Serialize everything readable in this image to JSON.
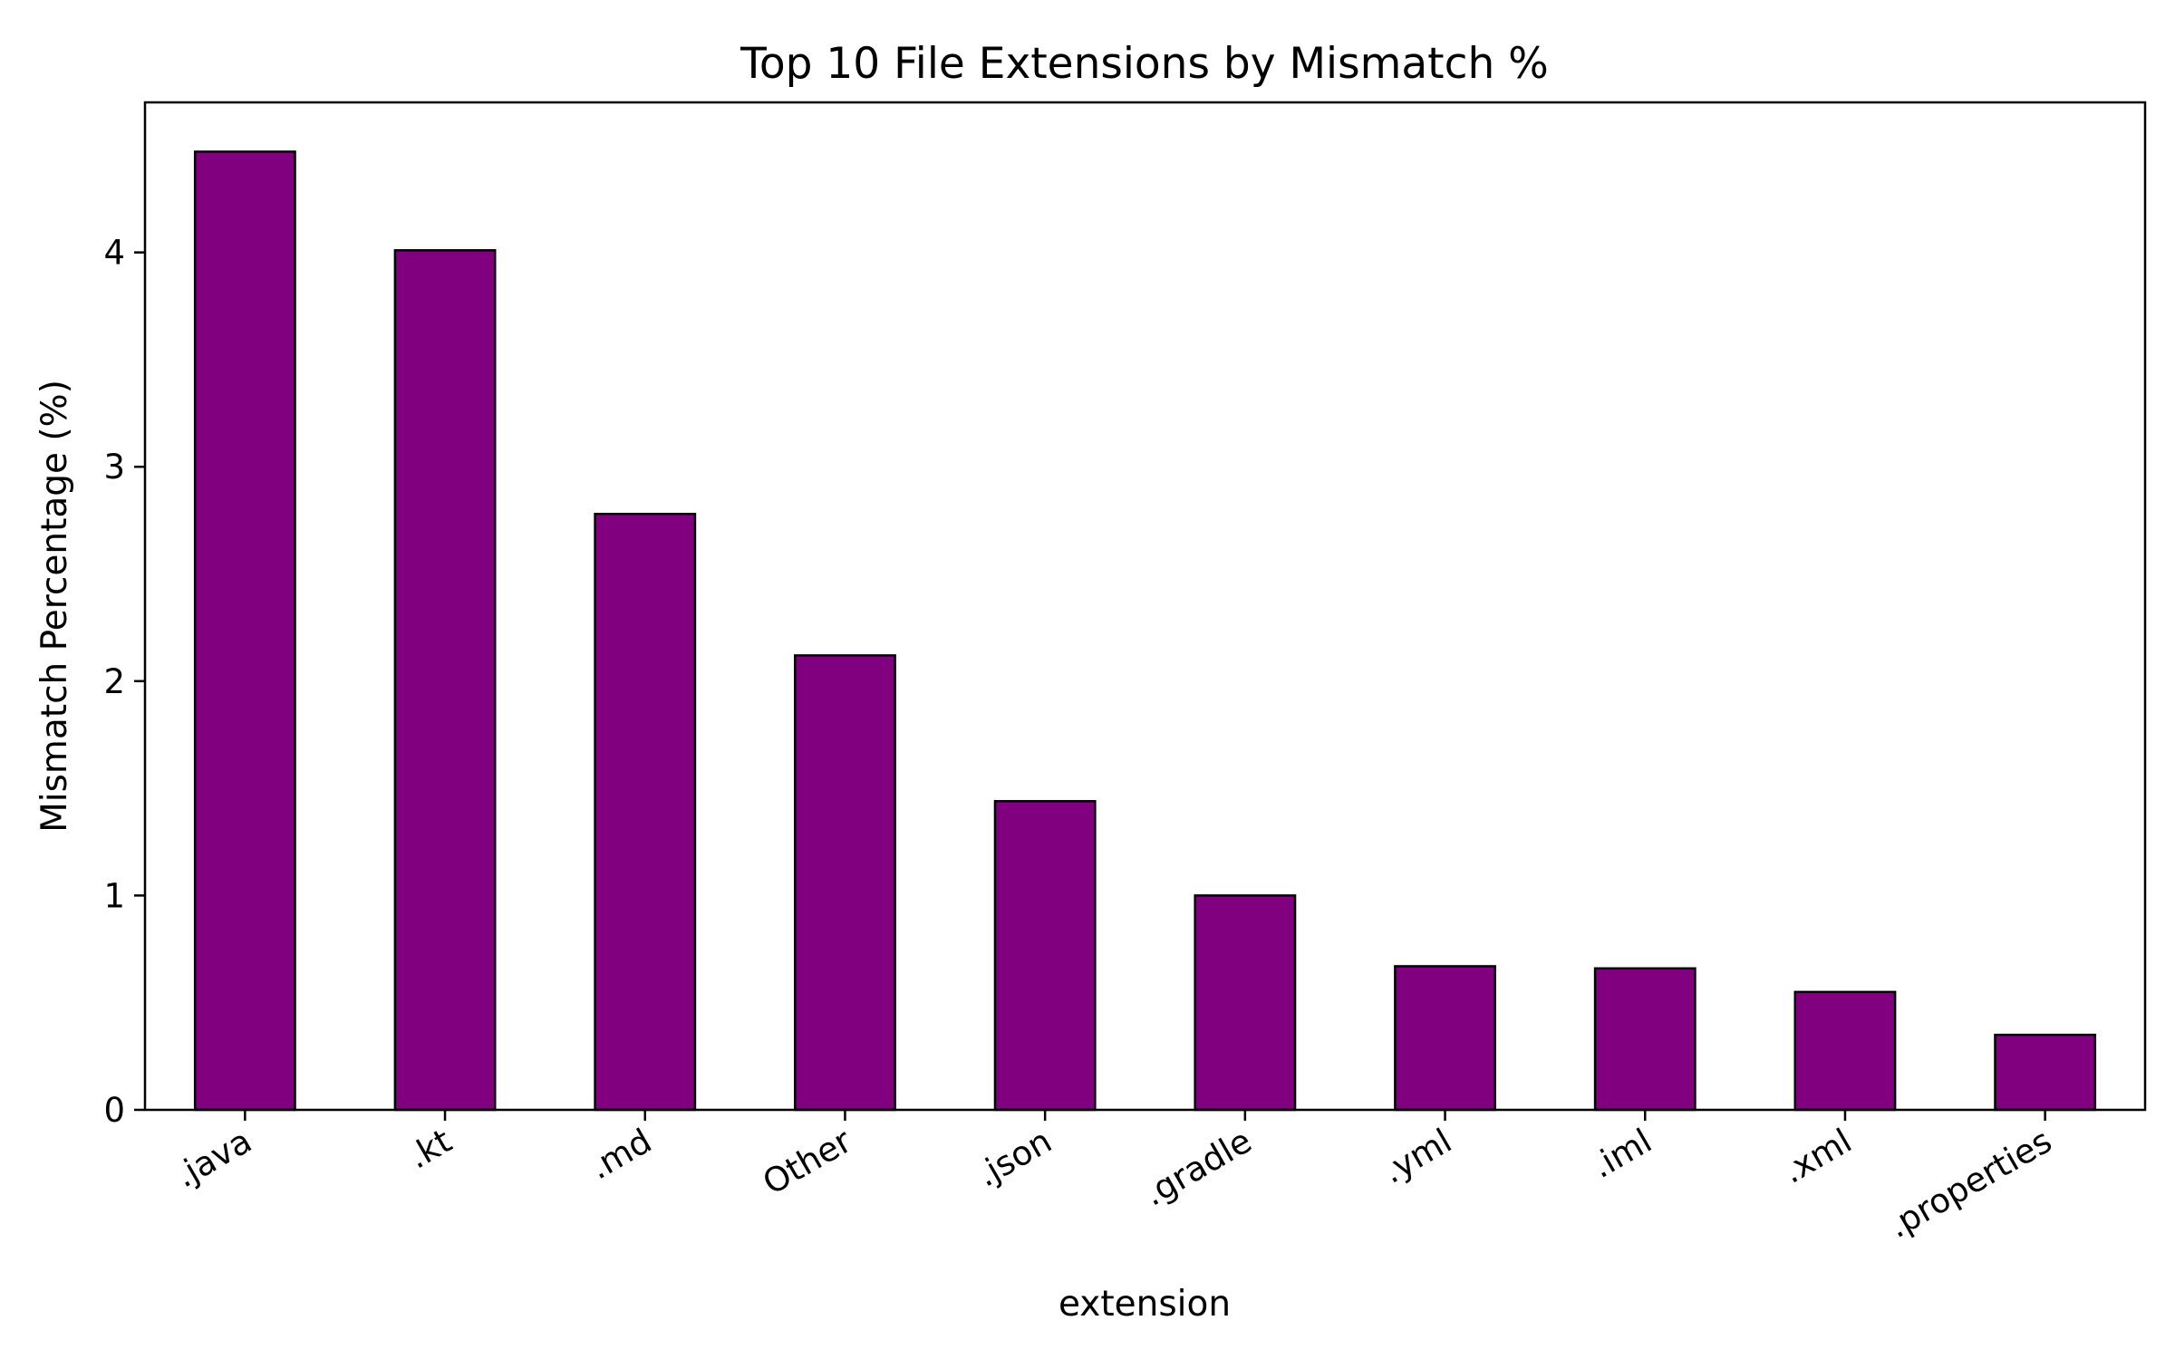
{
  "chart_data": {
    "type": "bar",
    "title": "Top 10 File Extensions by Mismatch %",
    "xlabel": "extension",
    "ylabel": "Mismatch Percentage (%)",
    "categories": [
      ".java",
      ".kt",
      ".md",
      "Other",
      ".json",
      ".gradle",
      ".yml",
      ".iml",
      ".xml",
      ".properties"
    ],
    "values": [
      4.47,
      4.01,
      2.78,
      2.12,
      1.44,
      1.0,
      0.67,
      0.66,
      0.55,
      0.35
    ],
    "yticks": [
      0,
      1,
      2,
      3,
      4
    ],
    "ylim": [
      0,
      4.7
    ],
    "grid": false,
    "legend": "none",
    "bar_color": "#800080",
    "edge_color": "#000000"
  }
}
